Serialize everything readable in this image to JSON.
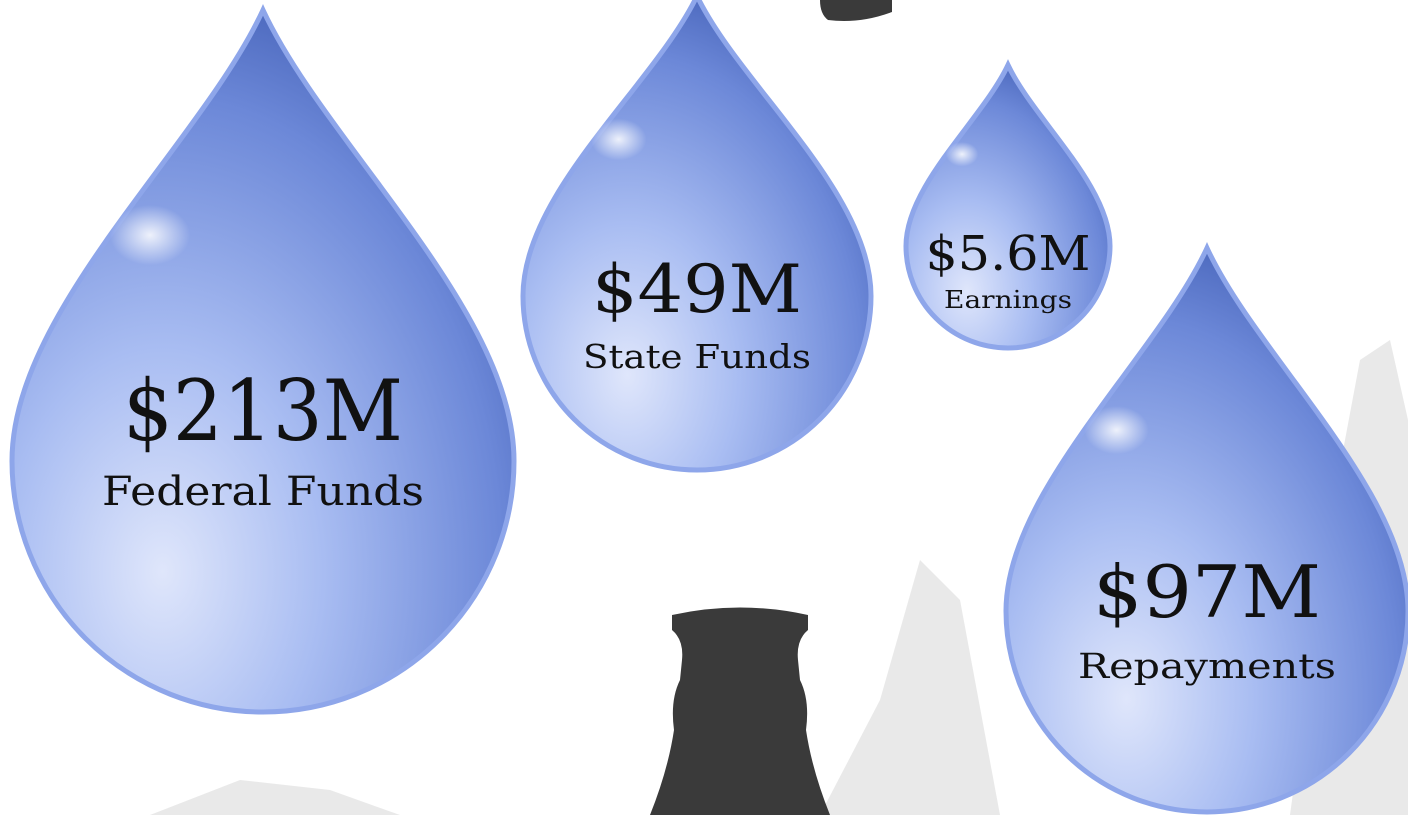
{
  "drops": [
    {
      "amount": "$213M",
      "label": "Federal Funds"
    },
    {
      "amount": "$49M",
      "label": "State Funds"
    },
    {
      "amount": "$5.6M",
      "label": "Earnings"
    },
    {
      "amount": "$97M",
      "label": "Repayments"
    }
  ]
}
